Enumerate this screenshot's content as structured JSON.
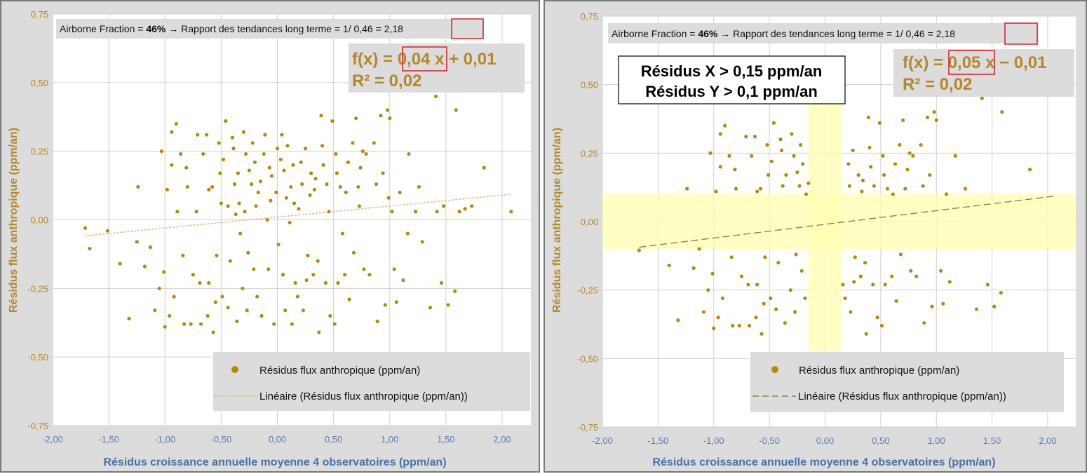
{
  "colors": {
    "points": "#b8860b",
    "axis_y": "#b5862a",
    "axis_x": "#4a6fa8",
    "highlight": "#ffffb0",
    "red_box": "#d0202a"
  },
  "chart_data": [
    {
      "type": "scatter",
      "xlabel": "Résidus croissance annuelle moyenne 4 observatoires (ppm/an)",
      "ylabel": "Résidus  flux anthropique (ppm/an)",
      "xlim": [
        -2,
        2.25
      ],
      "ylim": [
        -0.75,
        0.75
      ],
      "xticks": [
        "-2,00",
        "-1,50",
        "-1,00",
        "-0,50",
        "0,00",
        "0,50",
        "1,00",
        "1,50",
        "2,00"
      ],
      "yticks": [
        "0,75",
        "0,50",
        "0,25",
        "0,00",
        "-0,25",
        "-0,50",
        "-0,75"
      ],
      "grid": true,
      "legend": {
        "placement": "bottom-right",
        "points": "Résidus flux anthropique (ppm/an)",
        "trend": "Linéaire (Résidus flux anthropique (ppm/an))"
      },
      "annotation": {
        "prefix": "Airborne Fraction = ",
        "af": "46%",
        "middle": " → Rapport des tendances long terme = 1/ 0,46 = ",
        "ratio": "2,18"
      },
      "equation": {
        "prefix": "f(x) = ",
        "slope": "0,04",
        "suffix": " x + 0,01",
        "r2": "R² = 0,02"
      },
      "trend": {
        "slope": 0.04,
        "intercept": 0.01,
        "x_range": [
          -1.71,
          2.08
        ],
        "style": "dotted"
      },
      "filter": null
    },
    {
      "type": "scatter",
      "xlabel": "Résidus croissance annuelle moyenne 4 observatoires  (ppm/an)",
      "ylabel": "Résidus flux anthropique  (ppm/an)",
      "xlim": [
        -2,
        2.25
      ],
      "ylim": [
        -0.75,
        0.75
      ],
      "xticks": [
        "-2,00",
        "-1,50",
        "-1,00",
        "-0,50",
        "0,00",
        "0,50",
        "1,00",
        "1,50",
        "2,00"
      ],
      "yticks": [
        "0,75",
        "0,50",
        "0,25",
        "0,00",
        "-0,25",
        "-0,50",
        "-0,75"
      ],
      "grid": true,
      "legend": {
        "placement": "bottom-right",
        "points": "Résidus flux anthropique (ppm/an)",
        "trend": "Linéaire (Résidus flux anthropique (ppm/an))"
      },
      "annotation": {
        "prefix": "Airborne Fraction = ",
        "af": "46%",
        "middle": " → Rapport des tendances long terme = 1/ 0,46 = ",
        "ratio": "2,18"
      },
      "equation": {
        "prefix": "f(x) = ",
        "slope": "0,05",
        "suffix": " x − 0,01",
        "r2": "R² = 0,02"
      },
      "trend": {
        "slope": 0.05,
        "intercept": -0.01,
        "x_range": [
          -1.67,
          2.08
        ],
        "style": "dashed"
      },
      "filter": {
        "line1": "Résidus X > 0,15 ppm/an",
        "line2": "Résidus Y > 0,1 ppm/an",
        "x_min_abs": 0.15,
        "y_min_abs": 0.1,
        "x_band_y_range": [
          -0.47,
          0.43
        ]
      }
    }
  ],
  "points": [
    [
      -1.71,
      -0.03
    ],
    [
      -1.67,
      -0.105
    ],
    [
      -1.51,
      -0.04
    ],
    [
      -1.4,
      -0.16
    ],
    [
      -1.32,
      -0.36
    ],
    [
      -1.25,
      -0.08
    ],
    [
      -1.24,
      0.12
    ],
    [
      -1.18,
      -0.17
    ],
    [
      -1.13,
      -0.1
    ],
    [
      -1.09,
      -0.33
    ],
    [
      -1.03,
      0.25
    ],
    [
      -1.01,
      -0.19
    ],
    [
      -1.0,
      -0.39
    ],
    [
      -0.94,
      0.32
    ],
    [
      -0.94,
      0.2
    ],
    [
      -0.9,
      0.35
    ],
    [
      -0.96,
      -0.35
    ],
    [
      -0.89,
      0.03
    ],
    [
      -0.84,
      -0.13
    ],
    [
      -0.83,
      -0.38
    ],
    [
      -0.81,
      0.19
    ],
    [
      -0.77,
      -0.38
    ],
    [
      -0.72,
      0.03
    ],
    [
      -0.71,
      0.31
    ],
    [
      -0.69,
      -0.23
    ],
    [
      -0.68,
      -0.38
    ],
    [
      -0.63,
      0.31
    ],
    [
      -0.61,
      0.11
    ],
    [
      -0.61,
      -0.23
    ],
    [
      -0.57,
      -0.41
    ],
    [
      -0.54,
      -0.13
    ],
    [
      -0.52,
      0.28
    ],
    [
      -0.51,
      0.17
    ],
    [
      -0.49,
      -0.28
    ],
    [
      -0.46,
      0.36
    ],
    [
      -0.44,
      -0.32
    ],
    [
      -0.44,
      0.05
    ],
    [
      -0.39,
      0.26
    ],
    [
      -0.38,
      0.13
    ],
    [
      -0.36,
      -0.37
    ],
    [
      -0.34,
      0.06
    ],
    [
      -0.33,
      -0.05
    ],
    [
      -0.3,
      0.32
    ],
    [
      -0.29,
      0.03
    ],
    [
      -0.27,
      -0.33
    ],
    [
      -0.25,
      0.18
    ],
    [
      -0.23,
      0.13
    ],
    [
      -0.22,
      0.28
    ],
    [
      -0.21,
      -0.18
    ],
    [
      -0.17,
      0.1
    ],
    [
      -0.14,
      -0.35
    ],
    [
      -0.11,
      0.31
    ],
    [
      -0.09,
      0.0
    ],
    [
      -0.08,
      -0.18
    ],
    [
      -0.07,
      0.19
    ],
    [
      -0.03,
      -0.38
    ],
    [
      -0.01,
      0.1
    ],
    [
      0.0,
      0.26
    ],
    [
      0.01,
      -0.09
    ],
    [
      0.04,
      0.31
    ],
    [
      0.06,
      0.18
    ],
    [
      0.07,
      -0.33
    ],
    [
      0.08,
      0.08
    ],
    [
      0.11,
      -0.01
    ],
    [
      0.13,
      -0.38
    ],
    [
      0.14,
      0.2
    ],
    [
      0.16,
      -0.23
    ],
    [
      0.19,
      0.04
    ],
    [
      0.22,
      0.13
    ],
    [
      0.23,
      -0.33
    ],
    [
      0.25,
      0.26
    ],
    [
      0.27,
      -0.13
    ],
    [
      0.29,
      0.09
    ],
    [
      0.32,
      -0.2
    ],
    [
      0.34,
      0.15
    ],
    [
      0.37,
      -0.41
    ],
    [
      0.39,
      0.38
    ],
    [
      0.41,
      0.2
    ],
    [
      0.43,
      -0.23
    ],
    [
      0.46,
      0.03
    ],
    [
      0.49,
      0.36
    ],
    [
      0.51,
      -0.38
    ],
    [
      0.53,
      0.17
    ],
    [
      0.54,
      -0.23
    ],
    [
      0.58,
      -0.05
    ],
    [
      0.61,
      0.1
    ],
    [
      0.64,
      -0.29
    ],
    [
      0.67,
      0.28
    ],
    [
      0.7,
      0.37
    ],
    [
      0.73,
      0.05
    ],
    [
      0.74,
      0.19
    ],
    [
      0.77,
      -0.18
    ],
    [
      0.79,
      0.24
    ],
    [
      0.86,
      0.28
    ],
    [
      0.89,
      -0.37
    ],
    [
      0.92,
      0.38
    ],
    [
      0.94,
      0.17
    ],
    [
      0.96,
      -0.31
    ],
    [
      0.98,
      0.4
    ],
    [
      0.99,
      0.08
    ],
    [
      1.02,
      0.03
    ],
    [
      1.04,
      -0.18
    ],
    [
      1.06,
      -0.3
    ],
    [
      1.09,
      0.1
    ],
    [
      1.12,
      -0.22
    ],
    [
      1.16,
      -0.05
    ],
    [
      1.17,
      0.24
    ],
    [
      1.23,
      0.03
    ],
    [
      1.26,
      0.12
    ],
    [
      1.29,
      -0.08
    ],
    [
      1.36,
      -0.32
    ],
    [
      1.41,
      0.45
    ],
    [
      1.42,
      0.03
    ],
    [
      1.46,
      -0.23
    ],
    [
      1.48,
      0.05
    ],
    [
      1.52,
      -0.31
    ],
    [
      1.59,
      0.4
    ],
    [
      1.58,
      -0.26
    ],
    [
      1.62,
      0.03
    ],
    [
      1.67,
      0.04
    ],
    [
      1.73,
      0.05
    ],
    [
      1.84,
      0.19
    ],
    [
      2.08,
      0.03
    ],
    [
      -0.8,
      0.12
    ],
    [
      -0.75,
      -0.2
    ],
    [
      -0.66,
      0.24
    ],
    [
      -0.58,
      0.12
    ],
    [
      -0.55,
      -0.3
    ],
    [
      -0.48,
      0.22
    ],
    [
      -0.42,
      -0.15
    ],
    [
      -0.4,
      0.3
    ],
    [
      -0.35,
      0.17
    ],
    [
      -0.31,
      -0.25
    ],
    [
      -0.28,
      0.24
    ],
    [
      -0.26,
      -0.12
    ],
    [
      -0.2,
      0.21
    ],
    [
      -0.18,
      -0.28
    ],
    [
      -0.15,
      0.14
    ],
    [
      -0.12,
      0.24
    ],
    [
      -0.05,
      0.16
    ],
    [
      0.03,
      0.22
    ],
    [
      0.05,
      -0.2
    ],
    [
      0.09,
      0.27
    ],
    [
      0.12,
      0.12
    ],
    [
      0.18,
      -0.28
    ],
    [
      0.21,
      0.21
    ],
    [
      0.26,
      -0.22
    ],
    [
      0.3,
      0.17
    ],
    [
      0.33,
      0.11
    ],
    [
      0.36,
      -0.15
    ],
    [
      0.4,
      0.27
    ],
    [
      0.44,
      0.13
    ],
    [
      0.47,
      -0.35
    ],
    [
      0.52,
      0.24
    ],
    [
      0.56,
      0.12
    ],
    [
      0.6,
      -0.2
    ],
    [
      0.63,
      0.21
    ],
    [
      0.68,
      -0.12
    ],
    [
      0.72,
      0.12
    ],
    [
      0.76,
      0.25
    ],
    [
      0.82,
      -0.2
    ],
    [
      0.88,
      0.13
    ],
    [
      1.0,
      0.37
    ],
    [
      -1.05,
      -0.25
    ],
    [
      -0.98,
      0.11
    ],
    [
      -0.92,
      -0.28
    ],
    [
      -0.86,
      0.24
    ],
    [
      -0.62,
      -0.35
    ],
    [
      -0.5,
      0.06
    ],
    [
      -0.37,
      0.02
    ],
    [
      -0.19,
      0.05
    ],
    [
      -0.06,
      0.07
    ],
    [
      0.15,
      0.06
    ]
  ]
}
